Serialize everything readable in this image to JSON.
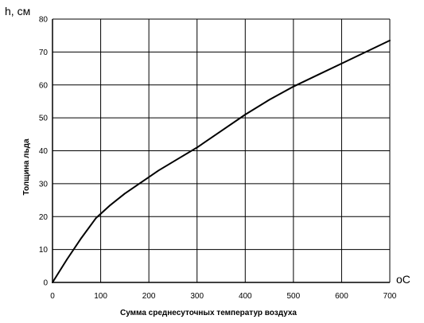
{
  "chart_data": {
    "type": "line",
    "title": "",
    "ylabel": "Толщина льда",
    "y_unit_label": "h, см",
    "xlabel": "Сумма среднесуточных температур воздуха",
    "x_unit_label": "oC",
    "xlim": [
      0,
      700
    ],
    "ylim": [
      0,
      80
    ],
    "x_ticks": [
      0,
      100,
      200,
      300,
      400,
      500,
      600,
      700
    ],
    "y_ticks": [
      0,
      10,
      20,
      30,
      40,
      50,
      60,
      70,
      80
    ],
    "grid": true,
    "line_color": "#000000",
    "series": [
      {
        "x": [
          0,
          30,
          60,
          90,
          120,
          150,
          180,
          220,
          260,
          300,
          350,
          400,
          450,
          500,
          550,
          600,
          650,
          700
        ],
        "y": [
          0,
          7,
          13.5,
          19.5,
          23.5,
          27,
          30,
          34,
          37.5,
          41,
          46,
          51,
          55.5,
          59.5,
          63,
          66.5,
          70,
          73.5
        ]
      }
    ]
  }
}
